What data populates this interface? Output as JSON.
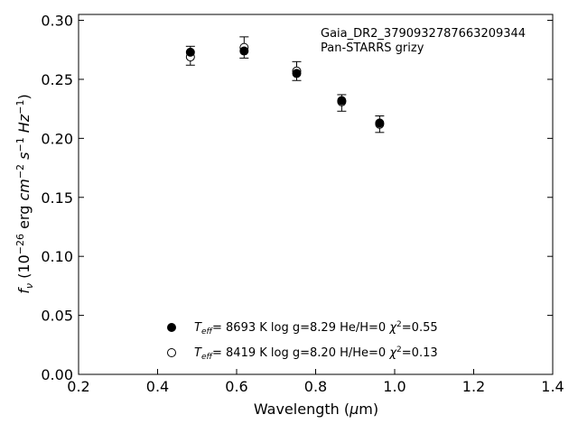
{
  "chart_data": {
    "type": "scatter",
    "title": "",
    "xlabel": "Wavelength (μm)",
    "ylabel": "f_ν (10^-26 erg cm^-2 s^-1 Hz^-1)",
    "xlim": [
      0.2,
      1.4
    ],
    "ylim": [
      0.0,
      0.305
    ],
    "x_ticks": [
      0.2,
      0.4,
      0.6,
      0.8,
      1.0,
      1.2,
      1.4
    ],
    "x_tick_labels": [
      "0.2",
      "0.4",
      "0.6",
      "0.8",
      "1.0",
      "1.2",
      "1.4"
    ],
    "y_ticks": [
      0.0,
      0.05,
      0.1,
      0.15,
      0.2,
      0.25,
      0.3
    ],
    "y_tick_labels": [
      "0.00",
      "0.05",
      "0.10",
      "0.15",
      "0.20",
      "0.25",
      "0.30"
    ],
    "grid": false,
    "annotation": {
      "object": "Gaia_DR2_3790932787663209344",
      "survey": "Pan-STARRS grizy"
    },
    "observed": {
      "x": [
        0.483,
        0.619,
        0.752,
        0.866,
        0.962
      ],
      "y": [
        0.27,
        0.277,
        0.257,
        0.23,
        0.212
      ],
      "err": [
        0.008,
        0.009,
        0.008,
        0.007,
        0.007
      ]
    },
    "series": [
      {
        "name": "T_eff = 8693 K log g=8.29 He/H=0 χ²=0.55",
        "marker": "filled-circle",
        "x": [
          0.483,
          0.619,
          0.752,
          0.866,
          0.962
        ],
        "y": [
          0.273,
          0.274,
          0.255,
          0.232,
          0.213
        ]
      },
      {
        "name": "T_eff = 8419 K log g=8.20 H/He=0 χ²=0.13",
        "marker": "open-circle",
        "x": [
          0.483,
          0.619,
          0.752,
          0.866,
          0.962
        ],
        "y": [
          0.269,
          0.277,
          0.257,
          0.231,
          0.212
        ]
      }
    ],
    "legend": [
      {
        "marker": "filled-circle",
        "teff": "8693 K",
        "logg": "log g=8.29",
        "comp": "He/H=0",
        "chi": "=0.55"
      },
      {
        "marker": "open-circle",
        "teff": "8419 K",
        "logg": "log g=8.20",
        "comp": "H/He=0",
        "chi": "=0.13"
      }
    ],
    "legend_position": "lower-center"
  }
}
